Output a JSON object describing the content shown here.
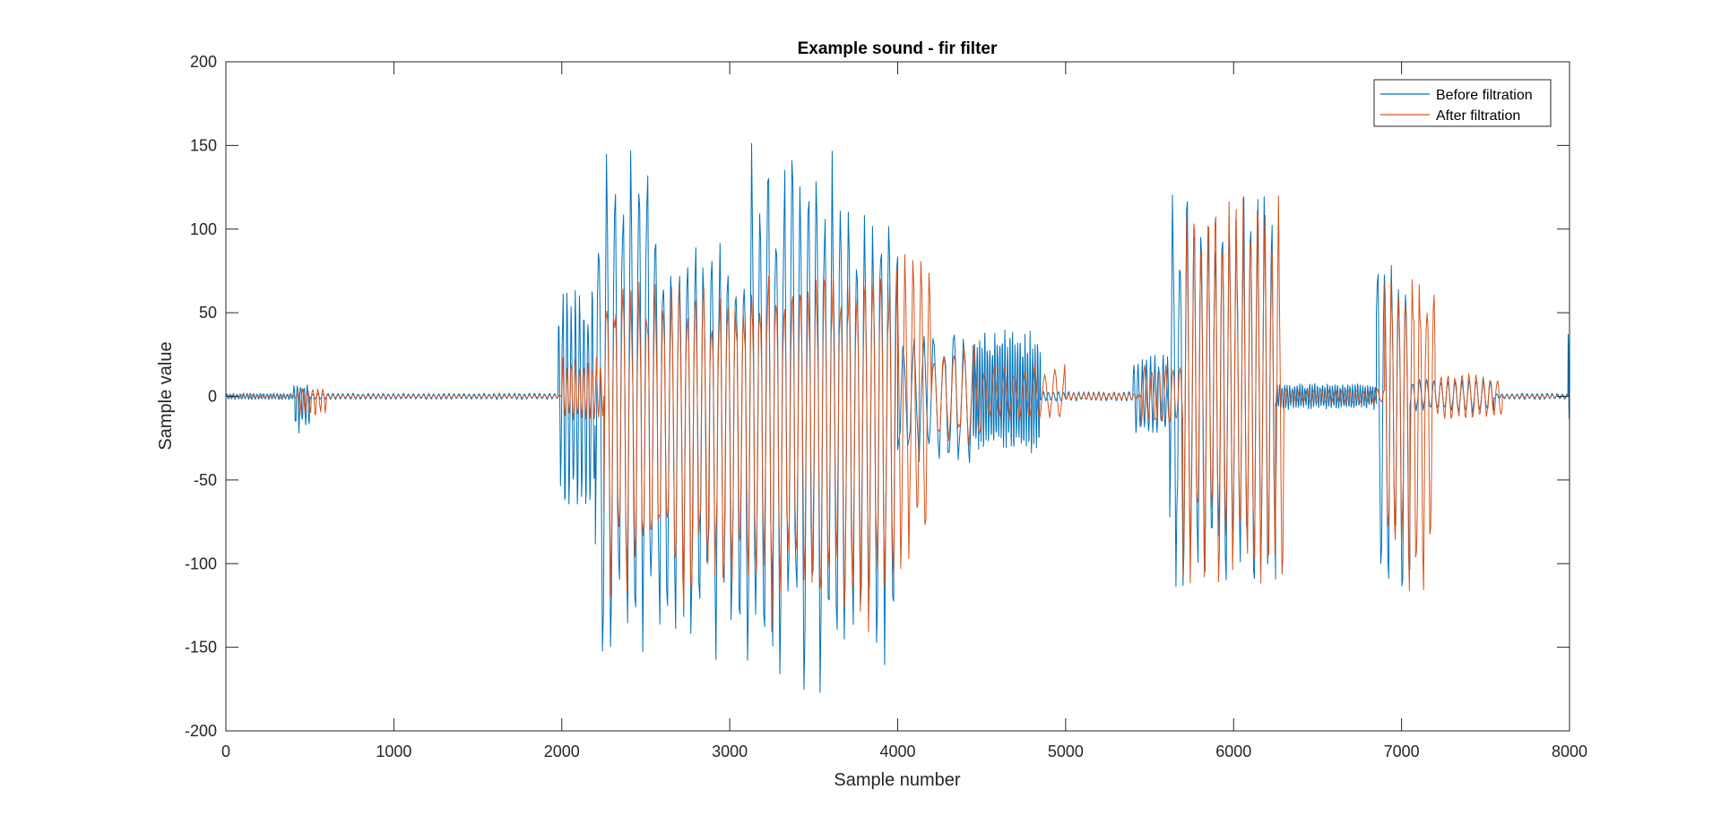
{
  "chart_data": {
    "type": "line",
    "title": "Example sound - fir filter",
    "xlabel": "Sample number",
    "ylabel": "Sample value",
    "xlim": [
      0,
      8000
    ],
    "ylim": [
      -200,
      200
    ],
    "x_ticks": [
      0,
      1000,
      2000,
      3000,
      4000,
      5000,
      6000,
      7000,
      8000
    ],
    "x_tick_labels": [
      "0",
      "1000",
      "2000",
      "3000",
      "4000",
      "5000",
      "6000",
      "7000",
      "8000"
    ],
    "y_ticks": [
      200,
      150,
      100,
      50,
      0,
      -50,
      -100,
      -150,
      -200
    ],
    "y_tick_labels": [
      "200",
      "150",
      "100",
      "50",
      "0",
      "-50",
      "-100",
      "-150",
      "-200"
    ],
    "grid": false,
    "legend_position": "top-right",
    "series": [
      {
        "name": "Before filtration",
        "color": "#0072BD",
        "style": "oscillating waveform",
        "segments": [
          {
            "x_start": 0,
            "x_end": 400,
            "pos_peak": 2,
            "neg_peak": -2,
            "period": 20
          },
          {
            "x_start": 400,
            "x_end": 500,
            "pos_peak": 7,
            "neg_peak": -22,
            "period": 20
          },
          {
            "x_start": 500,
            "x_end": 1980,
            "pos_peak": 2,
            "neg_peak": -2,
            "period": 30
          },
          {
            "x_start": 1980,
            "x_end": 2200,
            "pos_peak": 70,
            "neg_peak": -68,
            "period": 25
          },
          {
            "x_start": 2200,
            "x_end": 2600,
            "pos_peak": 157,
            "neg_peak": -160,
            "period": 48
          },
          {
            "x_start": 2600,
            "x_end": 3100,
            "pos_peak": 95,
            "neg_peak": -165,
            "period": 48
          },
          {
            "x_start": 3100,
            "x_end": 3700,
            "pos_peak": 157,
            "neg_peak": -188,
            "period": 48
          },
          {
            "x_start": 3700,
            "x_end": 4000,
            "pos_peak": 130,
            "neg_peak": -168,
            "period": 48
          },
          {
            "x_start": 4000,
            "x_end": 4450,
            "pos_peak": 40,
            "neg_peak": -45,
            "period": 60
          },
          {
            "x_start": 4450,
            "x_end": 4850,
            "pos_peak": 42,
            "neg_peak": -35,
            "period": 15
          },
          {
            "x_start": 4850,
            "x_end": 5400,
            "pos_peak": 3,
            "neg_peak": -3,
            "period": 30
          },
          {
            "x_start": 5400,
            "x_end": 5620,
            "pos_peak": 25,
            "neg_peak": -25,
            "period": 25
          },
          {
            "x_start": 5620,
            "x_end": 6250,
            "pos_peak": 132,
            "neg_peak": -125,
            "period": 42
          },
          {
            "x_start": 6250,
            "x_end": 6850,
            "pos_peak": 8,
            "neg_peak": -8,
            "period": 15
          },
          {
            "x_start": 6850,
            "x_end": 7050,
            "pos_peak": 90,
            "neg_peak": -133,
            "period": 42
          },
          {
            "x_start": 7050,
            "x_end": 7550,
            "pos_peak": 12,
            "neg_peak": -10,
            "period": 42
          },
          {
            "x_start": 7550,
            "x_end": 7990,
            "pos_peak": 2,
            "neg_peak": -2,
            "period": 30
          },
          {
            "x_start": 7990,
            "x_end": 8000,
            "pos_peak": 57,
            "neg_peak": -15,
            "period": 10
          }
        ]
      },
      {
        "name": "After filtration",
        "color": "#D95319",
        "style": "oscillating waveform",
        "segments": [
          {
            "x_start": 0,
            "x_end": 430,
            "pos_peak": 1,
            "neg_peak": -1,
            "period": 30
          },
          {
            "x_start": 430,
            "x_end": 600,
            "pos_peak": 5,
            "neg_peak": -12,
            "period": 30
          },
          {
            "x_start": 600,
            "x_end": 2000,
            "pos_peak": 1,
            "neg_peak": -1,
            "period": 30
          },
          {
            "x_start": 2000,
            "x_end": 2250,
            "pos_peak": 25,
            "neg_peak": -15,
            "period": 25
          },
          {
            "x_start": 2250,
            "x_end": 2600,
            "pos_peak": 70,
            "neg_peak": -120,
            "period": 48
          },
          {
            "x_start": 2600,
            "x_end": 3100,
            "pos_peak": 70,
            "neg_peak": -133,
            "period": 48
          },
          {
            "x_start": 3100,
            "x_end": 4000,
            "pos_peak": 85,
            "neg_peak": -150,
            "period": 48
          },
          {
            "x_start": 4000,
            "x_end": 4200,
            "pos_peak": 90,
            "neg_peak": -115,
            "period": 48
          },
          {
            "x_start": 4200,
            "x_end": 4500,
            "pos_peak": 30,
            "neg_peak": -30,
            "period": 60
          },
          {
            "x_start": 4500,
            "x_end": 5000,
            "pos_peak": 20,
            "neg_peak": -15,
            "period": 60
          },
          {
            "x_start": 5000,
            "x_end": 5450,
            "pos_peak": 2,
            "neg_peak": -2,
            "period": 30
          },
          {
            "x_start": 5450,
            "x_end": 5700,
            "pos_peak": 22,
            "neg_peak": -20,
            "period": 42
          },
          {
            "x_start": 5700,
            "x_end": 6300,
            "pos_peak": 128,
            "neg_peak": -115,
            "period": 42
          },
          {
            "x_start": 6300,
            "x_end": 6900,
            "pos_peak": 5,
            "neg_peak": -5,
            "period": 42
          },
          {
            "x_start": 6900,
            "x_end": 7200,
            "pos_peak": 85,
            "neg_peak": -125,
            "period": 42
          },
          {
            "x_start": 7200,
            "x_end": 7600,
            "pos_peak": 15,
            "neg_peak": -15,
            "period": 42
          },
          {
            "x_start": 7600,
            "x_end": 8000,
            "pos_peak": 1,
            "neg_peak": -1,
            "period": 30
          }
        ]
      }
    ]
  }
}
